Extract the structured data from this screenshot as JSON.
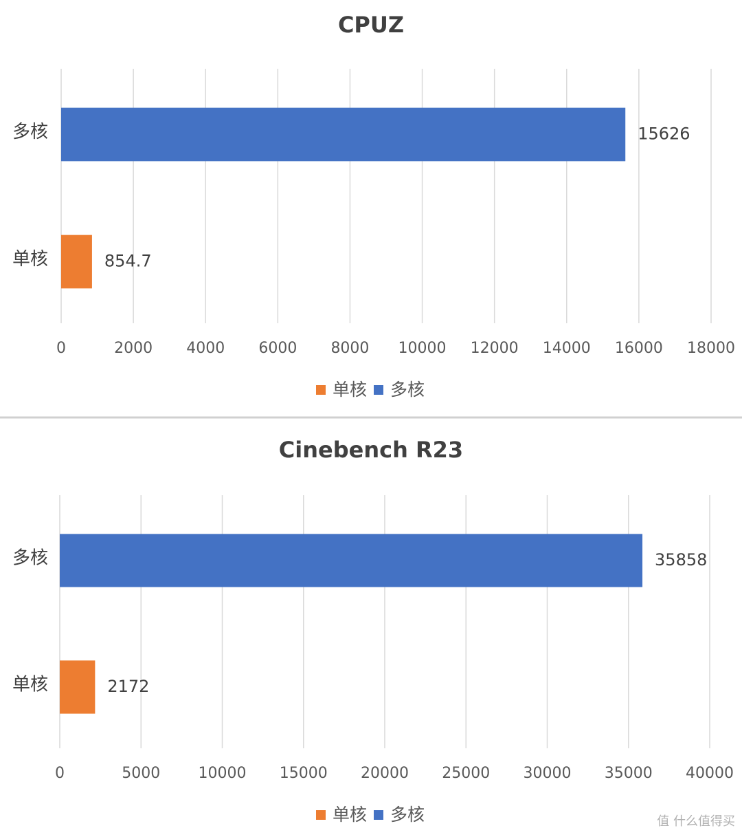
{
  "chart_data": [
    {
      "type": "bar",
      "orientation": "horizontal",
      "title": "CPUZ",
      "categories": [
        "单核",
        "多核"
      ],
      "series": [
        {
          "name": "单核",
          "color": "#ed7d31",
          "values": [
            854.7,
            null
          ]
        },
        {
          "name": "多核",
          "color": "#4472c4",
          "values": [
            null,
            15626
          ]
        }
      ],
      "xlim": [
        0,
        18000
      ],
      "xticks": [
        0,
        2000,
        4000,
        6000,
        8000,
        10000,
        12000,
        14000,
        16000,
        18000
      ],
      "grid": true,
      "legend": "bottom"
    },
    {
      "type": "bar",
      "orientation": "horizontal",
      "title": "Cinebench R23",
      "categories": [
        "单核",
        "多核"
      ],
      "series": [
        {
          "name": "单核",
          "color": "#ed7d31",
          "values": [
            2172,
            null
          ]
        },
        {
          "name": "多核",
          "color": "#4472c4",
          "values": [
            null,
            35858
          ]
        }
      ],
      "xlim": [
        0,
        40000
      ],
      "xticks": [
        0,
        5000,
        10000,
        15000,
        20000,
        25000,
        30000,
        35000,
        40000
      ],
      "grid": true,
      "legend": "bottom"
    }
  ],
  "watermark": "值 什么值得买"
}
